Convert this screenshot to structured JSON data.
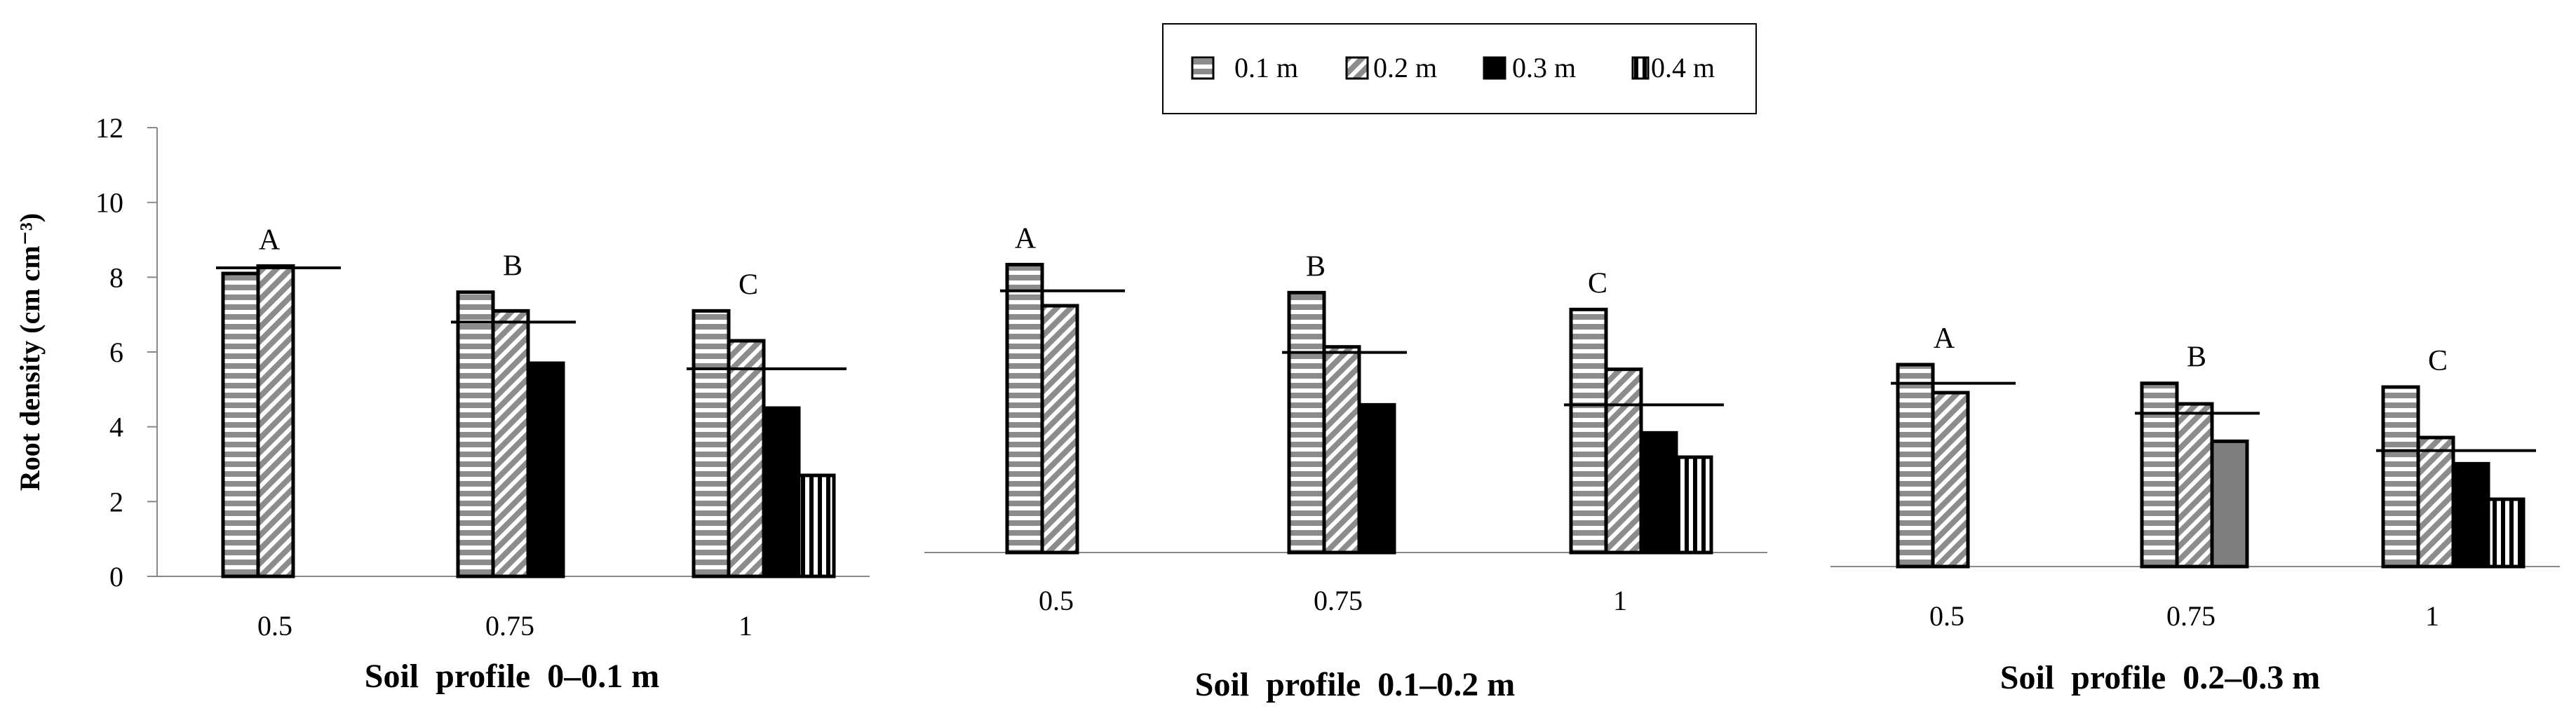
{
  "chart_data": {
    "type": "bar",
    "ylabel": "Root density (cm cm⁻³)",
    "ylim": [
      0,
      12
    ],
    "yticks": [
      "0",
      "2",
      "4",
      "6",
      "8",
      "10",
      "12"
    ],
    "legend": {
      "placement": "top-center",
      "items": [
        {
          "name": "0.1 m",
          "pattern": "hstripe"
        },
        {
          "name": "0.2 m",
          "pattern": "diag"
        },
        {
          "name": "0.3 m",
          "pattern": "solid-black"
        },
        {
          "name": "0.4 m",
          "pattern": "vstripe"
        }
      ]
    },
    "panels": [
      {
        "xlabel": "Soil  profile  0–0.1 m",
        "categories": [
          "0.5",
          "0.75",
          "1"
        ],
        "group_labels": [
          "A",
          "B",
          "C"
        ],
        "series": [
          {
            "name": "0.1 m",
            "values": [
              8.1,
              7.6,
              7.1
            ]
          },
          {
            "name": "0.2 m",
            "values": [
              8.3,
              7.1,
              6.3
            ]
          },
          {
            "name": "0.3 m",
            "values": [
              null,
              5.7,
              4.5
            ]
          },
          {
            "name": "0.4 m",
            "values": [
              null,
              null,
              2.7
            ]
          }
        ],
        "means": [
          8.25,
          6.8,
          5.55
        ]
      },
      {
        "xlabel": "Soil  profile  0.1–0.2 m",
        "categories": [
          "0.5",
          "0.75",
          "1"
        ],
        "group_labels": [
          "A",
          "B",
          "C"
        ],
        "series": [
          {
            "name": "0.1 m",
            "values": [
              7.7,
              6.95,
              6.5
            ]
          },
          {
            "name": "0.2 m",
            "values": [
              6.6,
              5.5,
              4.9
            ]
          },
          {
            "name": "0.3 m",
            "values": [
              null,
              3.95,
              3.2
            ]
          },
          {
            "name": "0.4 m",
            "values": [
              null,
              null,
              2.55
            ]
          }
        ],
        "means": [
          7.0,
          5.35,
          3.95
        ]
      },
      {
        "xlabel": "Soil  profile  0.2–0.3 m",
        "categories": [
          "0.5",
          "0.75",
          "1"
        ],
        "group_labels": [
          "A",
          "B",
          "C"
        ],
        "series": [
          {
            "name": "0.1 m",
            "values": [
              5.4,
              4.9,
              4.8
            ]
          },
          {
            "name": "0.2 m",
            "values": [
              4.65,
              4.35,
              3.45
            ]
          },
          {
            "name": "0.3 m",
            "values": [
              null,
              3.35,
              2.75
            ]
          },
          {
            "name": "0.4 m",
            "values": [
              null,
              null,
              1.8
            ]
          }
        ],
        "means": [
          4.9,
          4.1,
          3.1
        ]
      }
    ]
  }
}
